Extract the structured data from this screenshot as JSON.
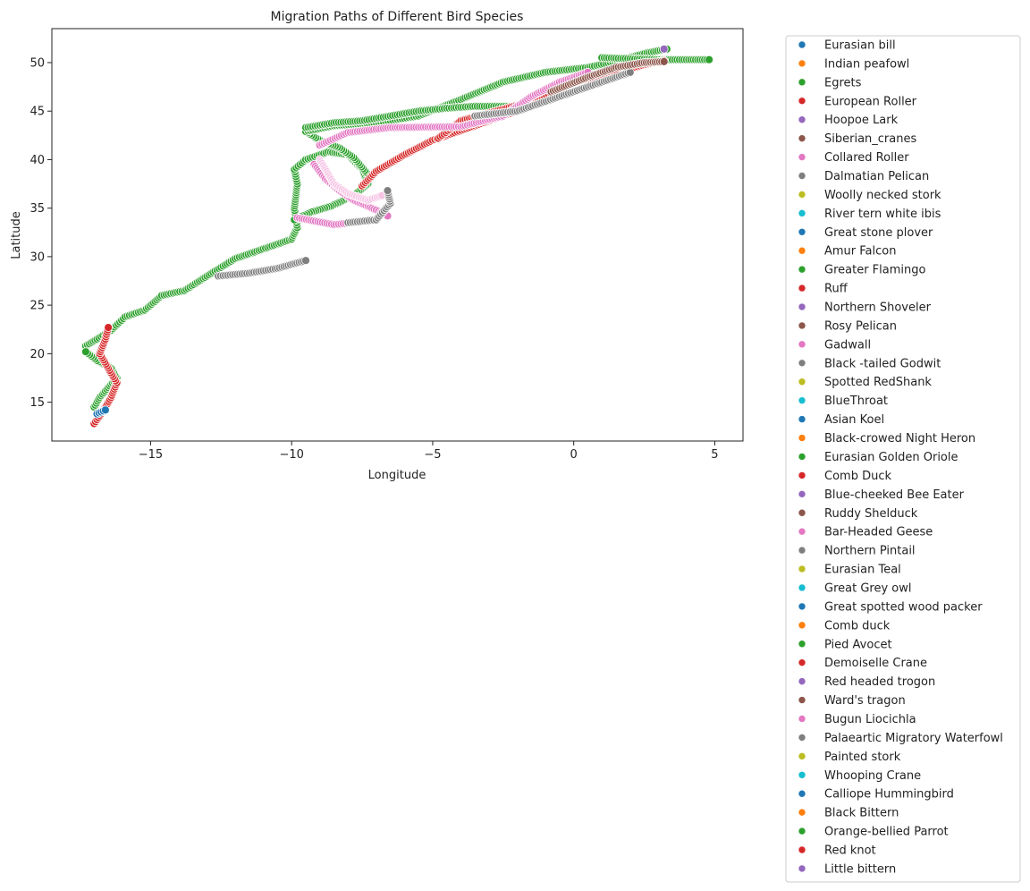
{
  "chart_data": {
    "type": "scatter",
    "title": "Migration Paths of Different Bird Species",
    "xlabel": "Longitude",
    "ylabel": "Latitude",
    "xlim": [
      -18.5,
      6.0
    ],
    "ylim": [
      11.0,
      53.5
    ],
    "xticks": [
      -15,
      -10,
      -5,
      0,
      5
    ],
    "yticks": [
      15,
      20,
      25,
      30,
      35,
      40,
      45,
      50
    ],
    "xtick_labels": [
      "−15",
      "−10",
      "−5",
      "0",
      "5"
    ],
    "ytick_labels": [
      "15",
      "20",
      "25",
      "30",
      "35",
      "40",
      "45",
      "50"
    ],
    "grid": false,
    "legend_placement": "outside-right",
    "palette": [
      "#1f77b4",
      "#ff7f0e",
      "#2ca02c",
      "#d62728",
      "#9467bd",
      "#8c564b",
      "#e377c2",
      "#7f7f7f",
      "#bcbd22",
      "#17becf"
    ],
    "legend": [
      "Eurasian bill",
      "Indian peafowl",
      "Egrets",
      "European Roller",
      "Hoopoe Lark",
      "Siberian_cranes",
      "Collared Roller",
      "Dalmatian Pelican",
      "Woolly necked stork",
      "River tern white ibis",
      "Great stone plover",
      "Amur Falcon",
      "Greater Flamingo",
      "Ruff",
      "Northern Shoveler",
      "Rosy Pelican",
      "Gadwall",
      "Black -tailed Godwit",
      "Spotted RedShank",
      "BlueThroat",
      "Asian Koel",
      "Black-crowed Night Heron",
      "Eurasian Golden Oriole",
      "Comb Duck",
      "Blue-cheeked Bee Eater",
      "Ruddy Shelduck",
      "Bar-Headed Geese",
      "Northern Pintail",
      "Eurasian Teal",
      "Great Grey owl",
      "Great spotted wood packer",
      "Comb duck",
      "Pied Avocet",
      "Demoiselle Crane",
      "Red headed trogon",
      "Ward's tragon",
      "Bugun Liocichla",
      "Palaeartic Migratory Waterfowl",
      "Painted stork",
      "Whooping Crane",
      "Calliope Hummingbird",
      "Black Bittern",
      "Orange-bellied Parrot",
      "Red knot",
      "Little bittern"
    ],
    "series": [
      {
        "color": "#2ca02c",
        "path": [
          [
            -17.3,
            20.8
          ],
          [
            -16.9,
            21.5
          ],
          [
            -16.4,
            22.4
          ],
          [
            -15.9,
            23.8
          ],
          [
            -15.2,
            24.5
          ],
          [
            -14.6,
            26.0
          ],
          [
            -13.8,
            26.5
          ],
          [
            -13.0,
            28.0
          ],
          [
            -12.0,
            29.8
          ],
          [
            -11.0,
            30.8
          ],
          [
            -10.0,
            31.8
          ],
          [
            -9.8,
            33.0
          ],
          [
            -9.9,
            35.0
          ],
          [
            -9.8,
            37.5
          ],
          [
            -9.9,
            39.0
          ],
          [
            -9.5,
            40.0
          ],
          [
            -8.7,
            40.8
          ],
          [
            -8.0,
            40.5
          ],
          [
            -7.5,
            39.0
          ],
          [
            -7.3,
            37.5
          ],
          [
            -7.8,
            36.3
          ],
          [
            -8.6,
            35.2
          ],
          [
            -9.3,
            34.6
          ],
          [
            -9.9,
            33.8
          ]
        ]
      },
      {
        "color": "#2ca02c",
        "path": [
          [
            -7.3,
            38.5
          ],
          [
            -7.8,
            40.2
          ],
          [
            -8.3,
            41.2
          ],
          [
            -9.0,
            42.0
          ],
          [
            -9.5,
            42.9
          ],
          [
            -8.5,
            43.5
          ],
          [
            -7.0,
            43.8
          ],
          [
            -5.5,
            44.5
          ],
          [
            -4.0,
            46.2
          ],
          [
            -2.5,
            48.0
          ],
          [
            -1.0,
            49.0
          ],
          [
            0.5,
            49.5
          ],
          [
            1.7,
            50.3
          ],
          [
            2.6,
            51.0
          ],
          [
            3.3,
            51.4
          ]
        ]
      },
      {
        "color": "#2ca02c",
        "path": [
          [
            -9.5,
            43.3
          ],
          [
            -8.5,
            43.8
          ],
          [
            -7.5,
            44.0
          ],
          [
            -6.5,
            44.5
          ],
          [
            -5.5,
            45.0
          ],
          [
            -4.5,
            45.3
          ],
          [
            -3.5,
            45.5
          ],
          [
            -2.5,
            45.5
          ],
          [
            -1.5,
            45.5
          ]
        ]
      },
      {
        "color": "#2ca02c",
        "path": [
          [
            1.0,
            50.5
          ],
          [
            2.0,
            50.4
          ],
          [
            3.0,
            50.3
          ],
          [
            4.0,
            50.3
          ],
          [
            4.8,
            50.3
          ]
        ]
      },
      {
        "color": "#2ca02c",
        "path": [
          [
            -17.0,
            14.5
          ],
          [
            -16.8,
            15.5
          ],
          [
            -16.5,
            16.5
          ],
          [
            -16.2,
            17.5
          ],
          [
            -16.4,
            18.5
          ],
          [
            -16.9,
            19.3
          ],
          [
            -17.3,
            20.2
          ]
        ]
      },
      {
        "color": "#d62728",
        "path": [
          [
            -17.0,
            12.8
          ],
          [
            -16.7,
            14.0
          ],
          [
            -16.4,
            15.5
          ],
          [
            -16.2,
            17.0
          ],
          [
            -16.5,
            18.5
          ],
          [
            -16.8,
            20.0
          ],
          [
            -16.6,
            21.5
          ],
          [
            -16.5,
            22.7
          ]
        ]
      },
      {
        "color": "#d62728",
        "path": [
          [
            -7.5,
            37.3
          ],
          [
            -7.0,
            38.8
          ],
          [
            -6.0,
            40.5
          ],
          [
            -5.0,
            42.0
          ],
          [
            -3.5,
            43.5
          ],
          [
            -2.0,
            45.0
          ],
          [
            -0.5,
            46.5
          ],
          [
            1.0,
            48.5
          ],
          [
            2.5,
            49.8
          ],
          [
            3.2,
            50.2
          ]
        ]
      },
      {
        "color": "#d62728",
        "path": [
          [
            -4.8,
            42.2
          ],
          [
            -4.0,
            44.0
          ],
          [
            -3.0,
            44.8
          ],
          [
            -1.5,
            46.0
          ],
          [
            0.0,
            48.0
          ],
          [
            1.5,
            49.0
          ]
        ]
      },
      {
        "color": "#e377c2",
        "path": [
          [
            -9.2,
            39.5
          ],
          [
            -8.8,
            38.0
          ],
          [
            -8.3,
            36.8
          ],
          [
            -7.8,
            35.8
          ],
          [
            -7.0,
            34.8
          ],
          [
            -6.6,
            34.2
          ]
        ]
      },
      {
        "color": "#e377c2",
        "path": [
          [
            -9.0,
            41.5
          ],
          [
            -8.0,
            42.8
          ],
          [
            -6.5,
            43.3
          ],
          [
            -4.0,
            43.4
          ],
          [
            -2.5,
            44.5
          ],
          [
            -1.5,
            46.5
          ],
          [
            -0.5,
            48.0
          ],
          [
            0.5,
            49.0
          ]
        ]
      },
      {
        "color": "#e377c2",
        "path": [
          [
            -9.8,
            34.0
          ],
          [
            -8.5,
            33.3
          ],
          [
            -7.5,
            33.6
          ]
        ]
      },
      {
        "color": "#f7c5e5",
        "path": [
          [
            -9.0,
            40.0
          ],
          [
            -8.5,
            37.5
          ],
          [
            -8.0,
            36.5
          ],
          [
            -7.3,
            35.8
          ],
          [
            -6.8,
            36.3
          ]
        ]
      },
      {
        "color": "#7f7f7f",
        "path": [
          [
            -12.6,
            28.0
          ],
          [
            -11.5,
            28.3
          ],
          [
            -10.5,
            28.8
          ],
          [
            -9.5,
            29.6
          ]
        ]
      },
      {
        "color": "#7f7f7f",
        "path": [
          [
            -8.0,
            33.5
          ],
          [
            -7.0,
            33.8
          ],
          [
            -6.5,
            35.5
          ],
          [
            -6.6,
            36.8
          ]
        ]
      },
      {
        "color": "#7f7f7f",
        "path": [
          [
            -3.5,
            44.5
          ],
          [
            -2.0,
            45.0
          ],
          [
            -0.5,
            46.5
          ],
          [
            1.0,
            48.0
          ],
          [
            2.0,
            49.0
          ]
        ]
      },
      {
        "color": "#8c564b",
        "path": [
          [
            -0.8,
            47.0
          ],
          [
            0.5,
            48.5
          ],
          [
            1.5,
            49.5
          ],
          [
            2.5,
            50.0
          ],
          [
            3.2,
            50.1
          ]
        ]
      },
      {
        "color": "#1f77b4",
        "path": [
          [
            -16.9,
            13.8
          ],
          [
            -16.6,
            14.2
          ]
        ]
      },
      {
        "color": "#9467bd",
        "path": [
          [
            3.2,
            51.4
          ]
        ]
      }
    ]
  }
}
